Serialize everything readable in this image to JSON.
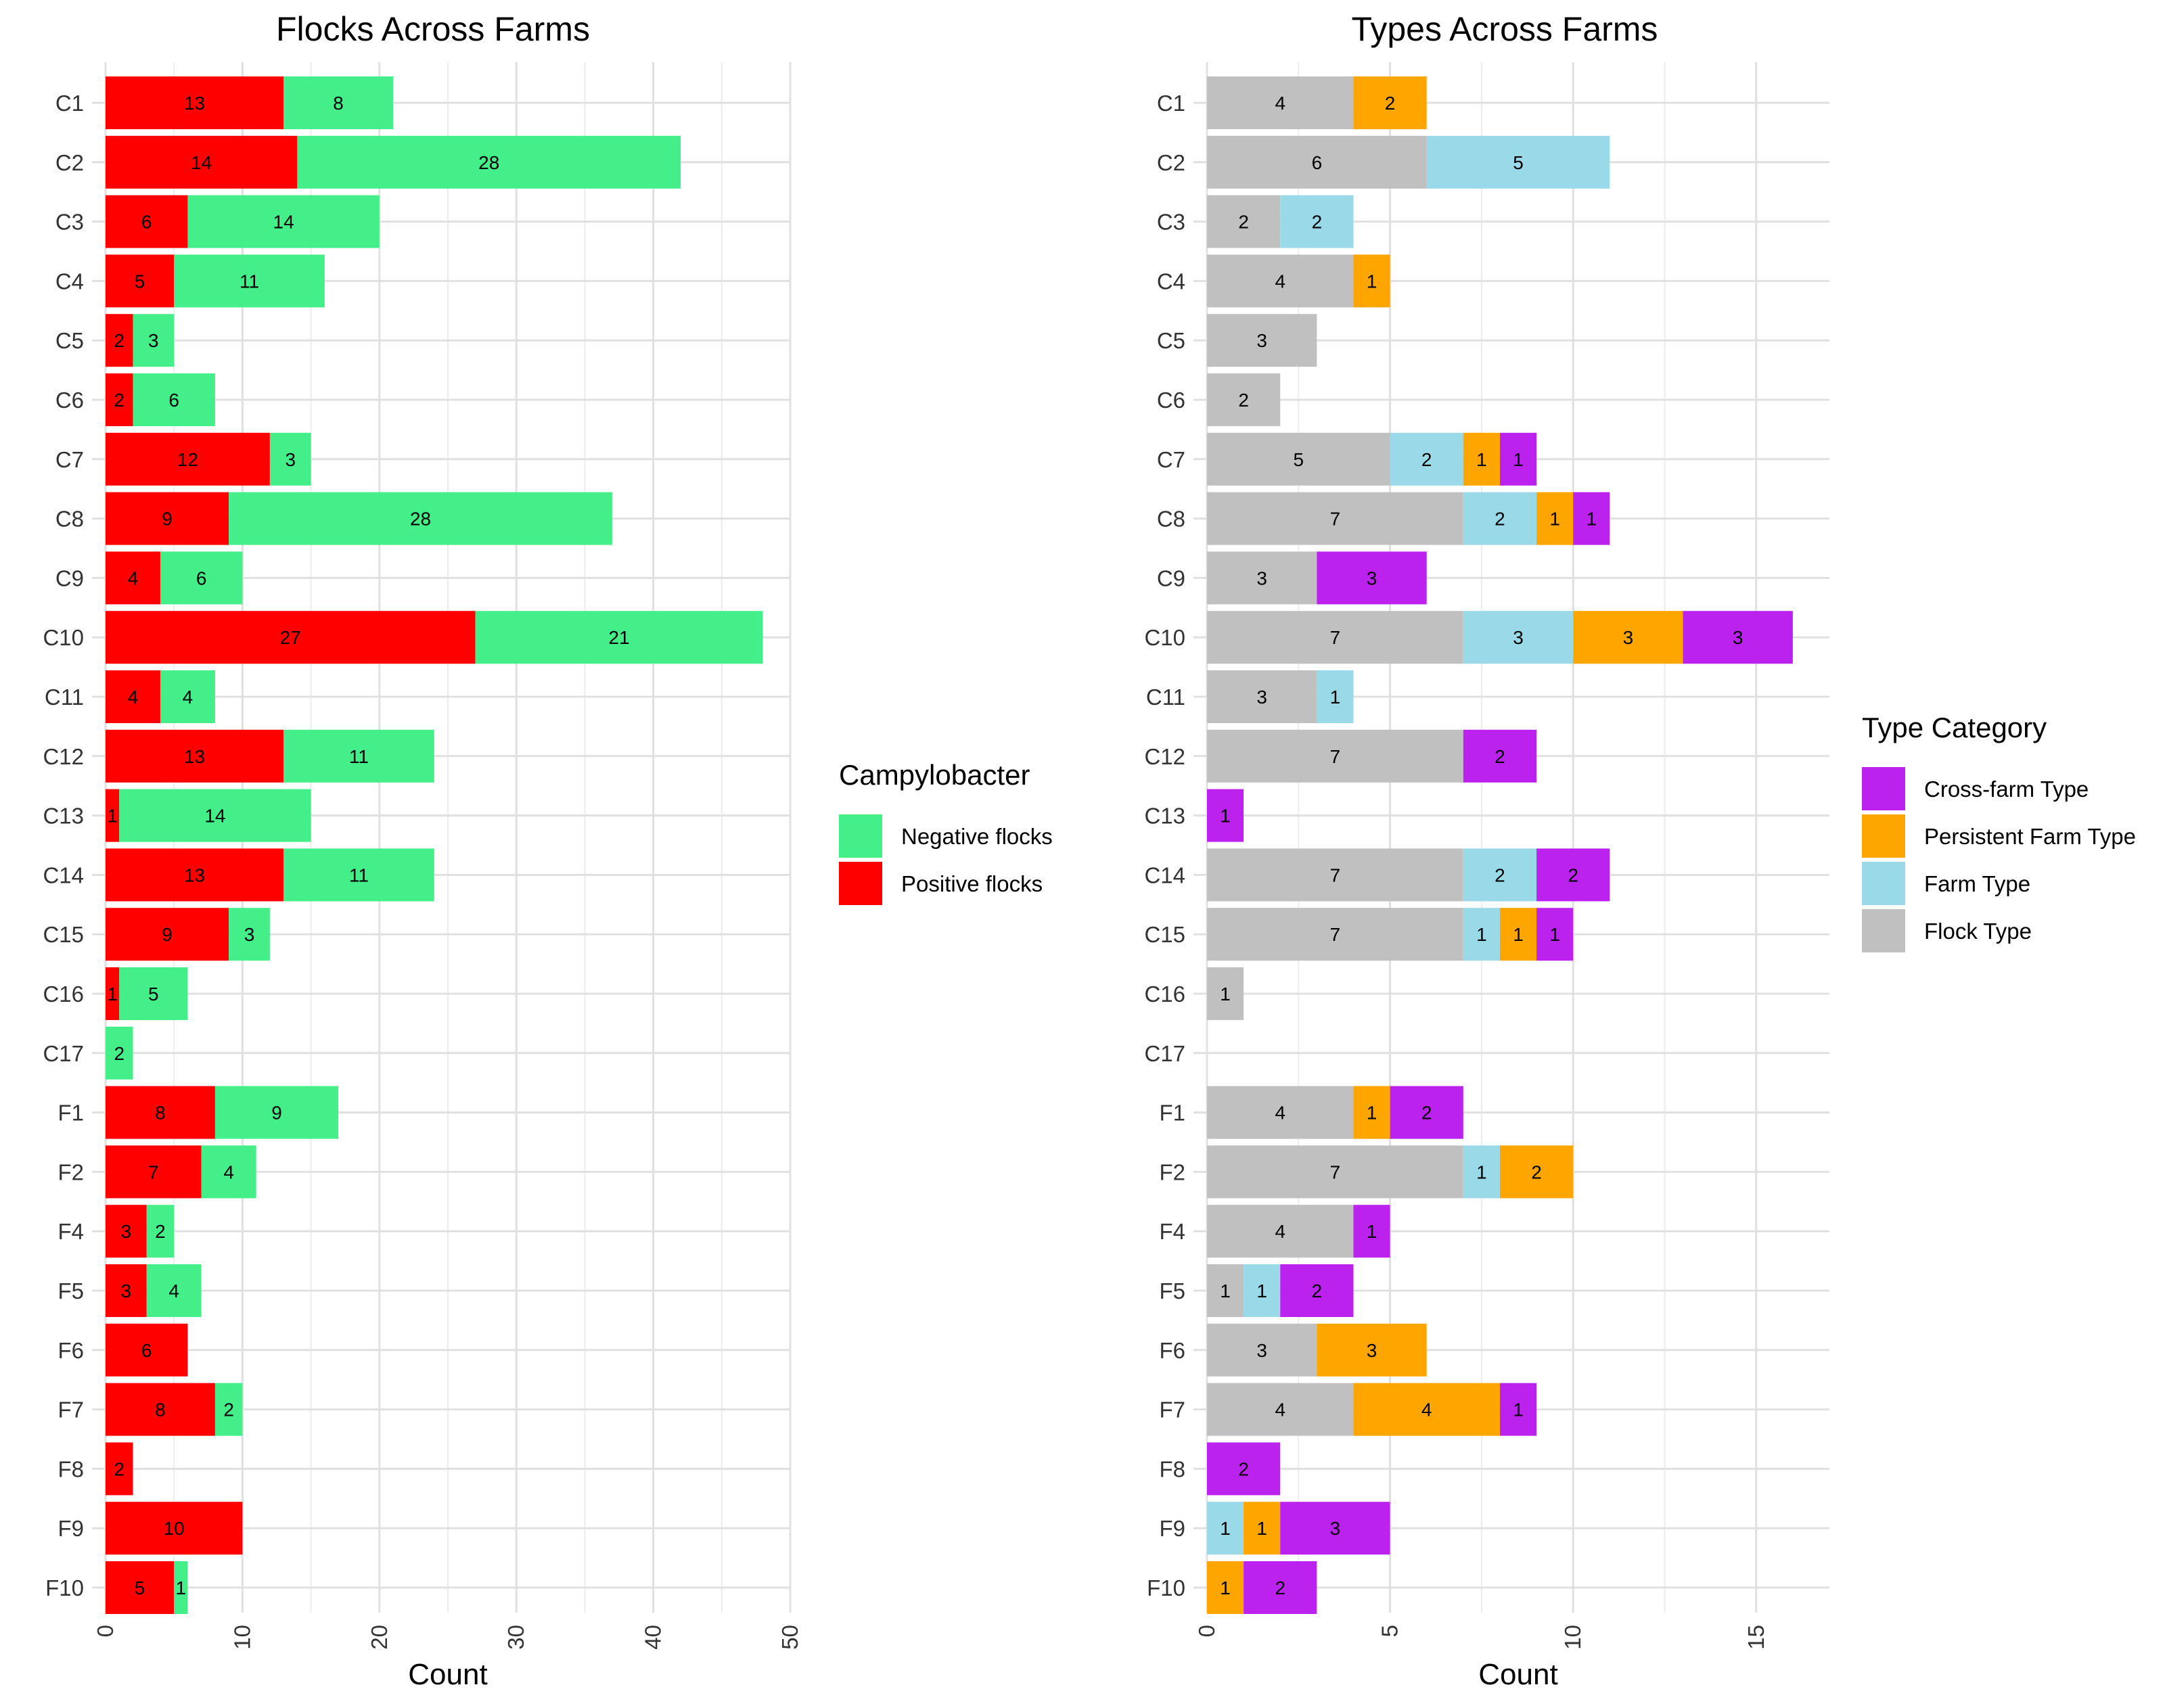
{
  "chart_data": [
    {
      "type": "bar",
      "orientation": "horizontal",
      "stacked": true,
      "title": "Flocks Across Farms",
      "xlabel": "Count",
      "ylabel": "",
      "xlim": [
        0,
        50
      ],
      "x_ticks": [
        0,
        10,
        20,
        30,
        40,
        50
      ],
      "grid": true,
      "legend_title": "Campylobacter",
      "legend_position": "right",
      "categories": [
        "C1",
        "C2",
        "C3",
        "C4",
        "C5",
        "C6",
        "C7",
        "C8",
        "C9",
        "C10",
        "C11",
        "C12",
        "C13",
        "C14",
        "C15",
        "C16",
        "C17",
        "F1",
        "F2",
        "F4",
        "F5",
        "F6",
        "F7",
        "F8",
        "F9",
        "F10"
      ],
      "series": [
        {
          "name": "Positive flocks",
          "color": "#ff0000",
          "values": [
            13,
            14,
            6,
            5,
            2,
            2,
            12,
            9,
            4,
            27,
            4,
            13,
            1,
            13,
            9,
            1,
            0,
            8,
            7,
            3,
            3,
            6,
            8,
            2,
            10,
            5
          ]
        },
        {
          "name": "Negative flocks",
          "color": "#44ee88",
          "values": [
            8,
            28,
            14,
            11,
            3,
            6,
            3,
            28,
            6,
            21,
            4,
            11,
            14,
            11,
            3,
            5,
            2,
            9,
            4,
            2,
            4,
            0,
            2,
            0,
            0,
            1
          ]
        }
      ],
      "legend_order": [
        "Negative flocks",
        "Positive flocks"
      ]
    },
    {
      "type": "bar",
      "orientation": "horizontal",
      "stacked": true,
      "title": "Types Across Farms",
      "xlabel": "Count",
      "ylabel": "",
      "xlim": [
        0,
        17
      ],
      "x_ticks": [
        0,
        5,
        10,
        15
      ],
      "grid": true,
      "legend_title": "Type Category",
      "legend_position": "right",
      "categories": [
        "C1",
        "C2",
        "C3",
        "C4",
        "C5",
        "C6",
        "C7",
        "C8",
        "C9",
        "C10",
        "C11",
        "C12",
        "C13",
        "C14",
        "C15",
        "C16",
        "C17",
        "F1",
        "F2",
        "F4",
        "F5",
        "F6",
        "F7",
        "F8",
        "F9",
        "F10"
      ],
      "series": [
        {
          "name": "Flock Type",
          "color": "#c0c0c0",
          "values": [
            4,
            6,
            2,
            4,
            3,
            2,
            5,
            7,
            3,
            7,
            3,
            7,
            0,
            7,
            7,
            1,
            0,
            4,
            7,
            4,
            1,
            3,
            4,
            0,
            0,
            0
          ]
        },
        {
          "name": "Farm Type",
          "color": "#99d9e8",
          "values": [
            0,
            5,
            2,
            0,
            0,
            0,
            2,
            2,
            0,
            3,
            1,
            0,
            0,
            2,
            1,
            0,
            0,
            0,
            1,
            0,
            1,
            0,
            0,
            0,
            1,
            0
          ]
        },
        {
          "name": "Persistent Farm Type",
          "color": "#ffa500",
          "values": [
            2,
            0,
            0,
            1,
            0,
            0,
            1,
            1,
            0,
            3,
            0,
            0,
            0,
            0,
            1,
            0,
            0,
            1,
            2,
            0,
            0,
            3,
            4,
            0,
            1,
            1
          ]
        },
        {
          "name": "Cross-farm Type",
          "color": "#bb22ee",
          "values": [
            0,
            0,
            0,
            0,
            0,
            0,
            1,
            1,
            3,
            3,
            0,
            2,
            1,
            2,
            1,
            0,
            0,
            2,
            0,
            1,
            2,
            0,
            1,
            2,
            3,
            2
          ]
        }
      ],
      "legend_order": [
        "Cross-farm Type",
        "Persistent Farm Type",
        "Farm Type",
        "Flock Type"
      ]
    }
  ]
}
